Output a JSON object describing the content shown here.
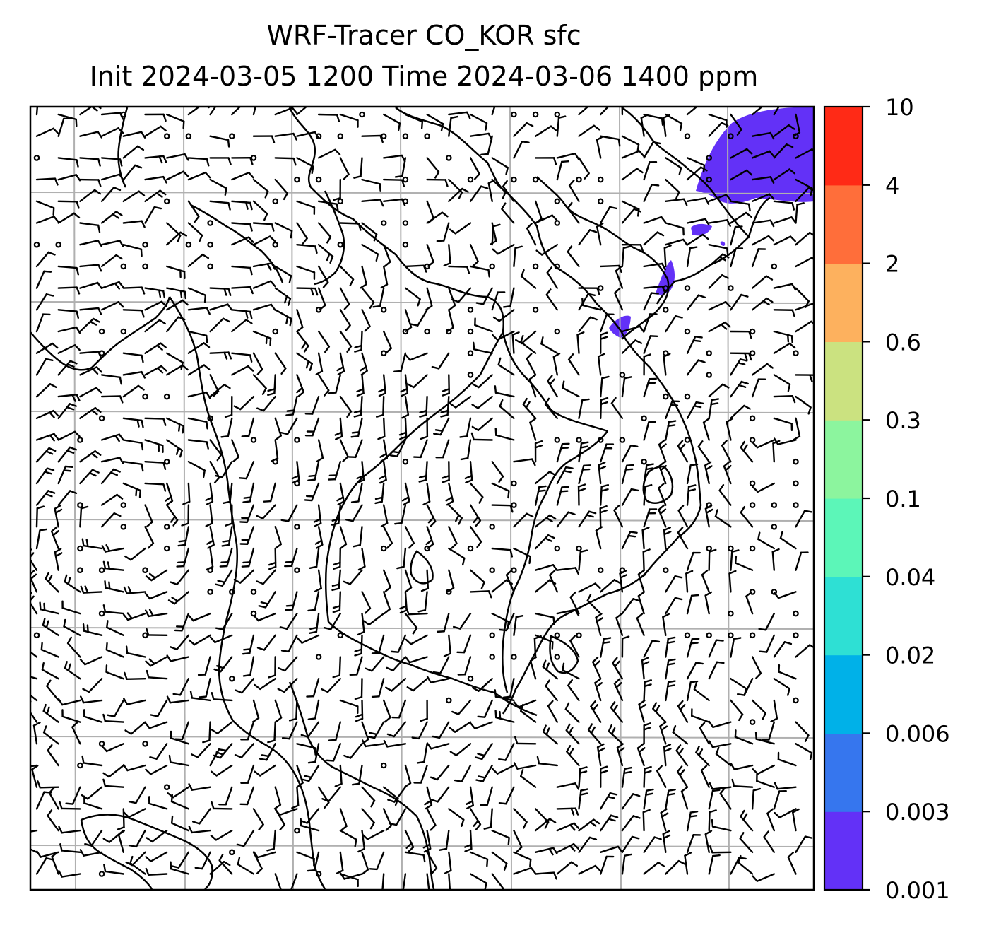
{
  "chart_data": {
    "type": "heatmap",
    "title": "WRF-Tracer CO_KOR sfc",
    "subtitle": "Init 2024-03-05 1200 Time 2024-03-06 1400 ppm",
    "field": "surface tracer concentration with wind barbs",
    "colorbar": {
      "tick_labels": [
        "0.001",
        "0.003",
        "0.006",
        "0.02",
        "0.04",
        "0.1",
        "0.3",
        "0.6",
        "2",
        "4",
        "10"
      ],
      "colors": [
        "#6331f7",
        "#3676ee",
        "#00b1e8",
        "#2ee0d4",
        "#5cf6b8",
        "#8cf59e",
        "#cbe280",
        "#fdb15e",
        "#ff6e3a",
        "#ff2a16"
      ]
    },
    "grid": true,
    "grid_color": "#b0b0b0",
    "filled_regions": [
      {
        "level": "0.001-0.003",
        "location": "top-right corner"
      },
      {
        "level": "0.001-0.003",
        "location": "upper-right near coast"
      }
    ]
  }
}
